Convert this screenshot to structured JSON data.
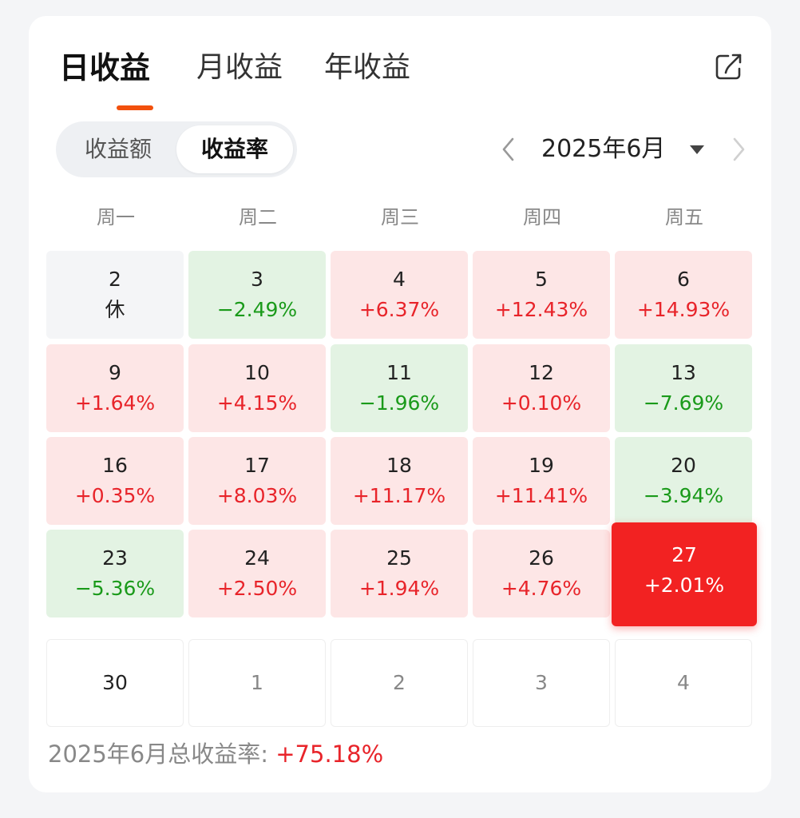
{
  "tabs": [
    {
      "label": "日收益",
      "active": true
    },
    {
      "label": "月收益",
      "active": false
    },
    {
      "label": "年收益",
      "active": false
    }
  ],
  "toggle": {
    "options": [
      "收益额",
      "收益率"
    ],
    "selected": "收益率"
  },
  "month_nav": {
    "label": "2025年6月",
    "prev_icon": "chevron-left-icon",
    "next_icon": "chevron-right-icon",
    "dropdown_icon": "caret-down-icon"
  },
  "share_icon": "share-icon",
  "weekdays": [
    "周一",
    "周二",
    "周三",
    "周四",
    "周五"
  ],
  "calendar": {
    "rows": [
      [
        {
          "day": "2",
          "value": "休",
          "state": "off"
        },
        {
          "day": "3",
          "value": "−2.49%",
          "state": "down"
        },
        {
          "day": "4",
          "value": "+6.37%",
          "state": "up"
        },
        {
          "day": "5",
          "value": "+12.43%",
          "state": "up"
        },
        {
          "day": "6",
          "value": "+14.93%",
          "state": "up"
        }
      ],
      [
        {
          "day": "9",
          "value": "+1.64%",
          "state": "up"
        },
        {
          "day": "10",
          "value": "+4.15%",
          "state": "up"
        },
        {
          "day": "11",
          "value": "−1.96%",
          "state": "down"
        },
        {
          "day": "12",
          "value": "+0.10%",
          "state": "up"
        },
        {
          "day": "13",
          "value": "−7.69%",
          "state": "down"
        }
      ],
      [
        {
          "day": "16",
          "value": "+0.35%",
          "state": "up"
        },
        {
          "day": "17",
          "value": "+8.03%",
          "state": "up"
        },
        {
          "day": "18",
          "value": "+11.17%",
          "state": "up"
        },
        {
          "day": "19",
          "value": "+11.41%",
          "state": "up"
        },
        {
          "day": "20",
          "value": "−3.94%",
          "state": "down"
        }
      ],
      [
        {
          "day": "23",
          "value": "−5.36%",
          "state": "down"
        },
        {
          "day": "24",
          "value": "+2.50%",
          "state": "up"
        },
        {
          "day": "25",
          "value": "+1.94%",
          "state": "up"
        },
        {
          "day": "26",
          "value": "+4.76%",
          "state": "up"
        },
        {
          "day": "27",
          "value": "+2.01%",
          "state": "selected"
        }
      ],
      [
        {
          "day": "30",
          "value": "",
          "state": "empty"
        },
        {
          "day": "1",
          "value": "",
          "state": "next"
        },
        {
          "day": "2",
          "value": "",
          "state": "next"
        },
        {
          "day": "3",
          "value": "",
          "state": "next"
        },
        {
          "day": "4",
          "value": "",
          "state": "next"
        }
      ]
    ]
  },
  "summary": {
    "label": "2025年6月总收益率: ",
    "value": "+75.18%"
  },
  "colors": {
    "accent": "#f2500d",
    "up_text": "#e8242a",
    "up_bg": "#fde6e6",
    "down_text": "#1a9a1a",
    "down_bg": "#e3f3e3",
    "selected_bg": "#f22222"
  }
}
